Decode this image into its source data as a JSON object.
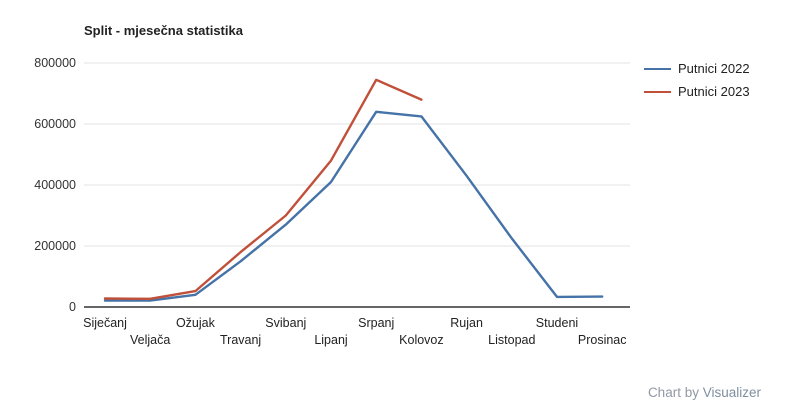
{
  "page": {
    "background": "#ffffff"
  },
  "chart_data": {
    "type": "line",
    "title": "Split - mjesečna statistika",
    "xlabel": "",
    "ylabel": "",
    "categories": [
      "Siječanj",
      "Veljača",
      "Ožujak",
      "Travanj",
      "Svibanj",
      "Lipanj",
      "Srpanj",
      "Kolovoz",
      "Rujan",
      "Listopad",
      "Studeni",
      "Prosinac"
    ],
    "series": [
      {
        "name": "Putnici 2022",
        "color": "#4572a7",
        "values": [
          21000,
          21000,
          40000,
          150000,
          270000,
          410000,
          640000,
          625000,
          430000,
          225000,
          33000,
          34000
        ]
      },
      {
        "name": "Putnici 2023",
        "color": "#c1503a",
        "values": [
          28000,
          27000,
          52000,
          180000,
          300000,
          480000,
          745000,
          680000
        ]
      }
    ],
    "ylim": [
      0,
      800000
    ],
    "y_ticks": [
      0,
      200000,
      400000,
      600000,
      800000
    ],
    "y_tick_labels": [
      "0",
      "200000",
      "400000",
      "600000",
      "800000"
    ],
    "grid": true,
    "legend_position": "right",
    "x_labels_staggered": true
  },
  "colors": {
    "grid_line": "#e3e3e3",
    "axis_line": "#333333",
    "text": "#222222",
    "credit_text": "#8f99a3"
  },
  "credit": {
    "prefix": "Chart by ",
    "link": "Visualizer"
  }
}
